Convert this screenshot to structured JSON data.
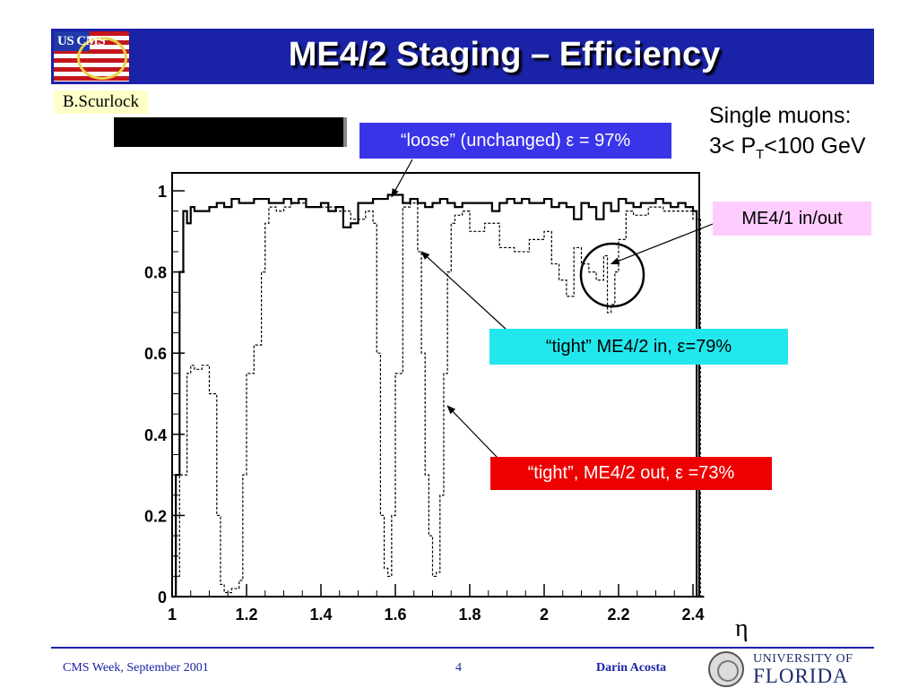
{
  "slide": {
    "title": "ME4/2 Staging – Efficiency",
    "logo_text": "US CMS",
    "author_tag": "B.Scurlock",
    "sample_line1": "Single muons:",
    "sample_line2_pre": "3< P",
    "sample_line2_sub": "T",
    "sample_line2_post": "<100 GeV",
    "eta_symbol": "η",
    "footer": {
      "event": "CMS Week, September 2001",
      "page": "4",
      "presenter": "Darin Acosta",
      "university_top": "UNIVERSITY OF",
      "university_bottom": "FLORIDA"
    },
    "colors": {
      "title_bar": "#1a22a8",
      "loose_box": "#3a34e8",
      "me41_box": "#ffccff",
      "tight_in_box": "#22e8ee",
      "tight_out_box": "#ee0000"
    }
  },
  "chart_data": {
    "type": "line",
    "xlabel": "η",
    "ylabel": "",
    "xlim": [
      1.0,
      2.45
    ],
    "ylim": [
      0,
      1.05
    ],
    "xticks": [
      "1",
      "1.2",
      "1.4",
      "1.6",
      "1.8",
      "2",
      "2.2",
      "2.4"
    ],
    "yticks": [
      "0",
      "0.2",
      "0.4",
      "0.6",
      "0.8",
      "1"
    ],
    "grid": false,
    "annotations": [
      {
        "text": "“loose” (unchanged) ε = 97%",
        "points_to": [
          1.59,
          0.985
        ]
      },
      {
        "text": "ME4/1 in/out",
        "points_to": [
          2.18,
          0.82
        ]
      },
      {
        "text": "“tight” ME4/2 in, ε=79%",
        "points_to": [
          1.67,
          0.85
        ]
      },
      {
        "text": "“tight”, ME4/2 out, ε =73%",
        "points_to": [
          1.74,
          0.47
        ]
      }
    ],
    "series": [
      {
        "style": "solid",
        "x": [
          1.0,
          1.01,
          1.02,
          1.03,
          1.04,
          1.05,
          1.06,
          1.08,
          1.1,
          1.12,
          1.14,
          1.16,
          1.18,
          1.2,
          1.22,
          1.24,
          1.26,
          1.28,
          1.3,
          1.32,
          1.34,
          1.36,
          1.38,
          1.4,
          1.42,
          1.44,
          1.46,
          1.48,
          1.5,
          1.52,
          1.54,
          1.56,
          1.58,
          1.6,
          1.62,
          1.64,
          1.66,
          1.68,
          1.7,
          1.72,
          1.74,
          1.76,
          1.78,
          1.8,
          1.82,
          1.84,
          1.86,
          1.88,
          1.9,
          1.92,
          1.94,
          1.96,
          1.98,
          2.0,
          2.02,
          2.04,
          2.06,
          2.08,
          2.1,
          2.12,
          2.14,
          2.16,
          2.18,
          2.2,
          2.22,
          2.24,
          2.26,
          2.28,
          2.3,
          2.32,
          2.34,
          2.36,
          2.38,
          2.4,
          2.41,
          2.42
        ],
        "y": [
          0.0,
          0.3,
          0.8,
          0.95,
          0.92,
          0.96,
          0.95,
          0.95,
          0.96,
          0.97,
          0.96,
          0.98,
          0.97,
          0.97,
          0.98,
          0.98,
          0.97,
          0.97,
          0.98,
          0.97,
          0.98,
          0.96,
          0.96,
          0.97,
          0.95,
          0.96,
          0.91,
          0.92,
          0.97,
          0.97,
          0.98,
          0.98,
          0.99,
          0.99,
          0.97,
          0.98,
          0.97,
          0.96,
          0.97,
          0.98,
          0.97,
          0.96,
          0.97,
          0.97,
          0.97,
          0.97,
          0.95,
          0.97,
          0.98,
          0.97,
          0.98,
          0.97,
          0.97,
          0.98,
          0.96,
          0.97,
          0.96,
          0.93,
          0.97,
          0.96,
          0.93,
          0.97,
          0.95,
          0.98,
          0.97,
          0.96,
          0.97,
          0.97,
          0.98,
          0.97,
          0.96,
          0.97,
          0.96,
          0.95,
          0.0,
          0.0
        ]
      },
      {
        "style": "dotted",
        "x": [
          1.0,
          1.01,
          1.02,
          1.04,
          1.05,
          1.06,
          1.08,
          1.1,
          1.12,
          1.13,
          1.14,
          1.16,
          1.18,
          1.19,
          1.2,
          1.22,
          1.24,
          1.25,
          1.26,
          1.28,
          1.3,
          1.32,
          1.36,
          1.4,
          1.44,
          1.48,
          1.52,
          1.54,
          1.55,
          1.56,
          1.57,
          1.58,
          1.59,
          1.6,
          1.62,
          1.64,
          1.66,
          1.67,
          1.68,
          1.69,
          1.7,
          1.71,
          1.72,
          1.73,
          1.74,
          1.75,
          1.76,
          1.78,
          1.8,
          1.84,
          1.88,
          1.92,
          1.96,
          2.0,
          2.02,
          2.04,
          2.06,
          2.08,
          2.1,
          2.12,
          2.14,
          2.16,
          2.17,
          2.18,
          2.19,
          2.2,
          2.22,
          2.24,
          2.28,
          2.32,
          2.36,
          2.4,
          2.42
        ],
        "y": [
          0.0,
          0.05,
          0.3,
          0.55,
          0.57,
          0.56,
          0.57,
          0.5,
          0.2,
          0.03,
          0.01,
          0.02,
          0.04,
          0.3,
          0.55,
          0.62,
          0.8,
          0.92,
          0.96,
          0.95,
          0.96,
          0.97,
          0.96,
          0.96,
          0.95,
          0.93,
          0.95,
          0.92,
          0.6,
          0.2,
          0.07,
          0.05,
          0.2,
          0.55,
          0.96,
          0.97,
          0.85,
          0.6,
          0.3,
          0.15,
          0.05,
          0.06,
          0.25,
          0.55,
          0.8,
          0.92,
          0.94,
          0.95,
          0.9,
          0.92,
          0.86,
          0.85,
          0.88,
          0.9,
          0.82,
          0.78,
          0.74,
          0.86,
          0.82,
          0.8,
          0.78,
          0.84,
          0.7,
          0.72,
          0.8,
          0.88,
          0.95,
          0.94,
          0.96,
          0.95,
          0.95,
          0.93,
          0.0
        ]
      }
    ]
  }
}
